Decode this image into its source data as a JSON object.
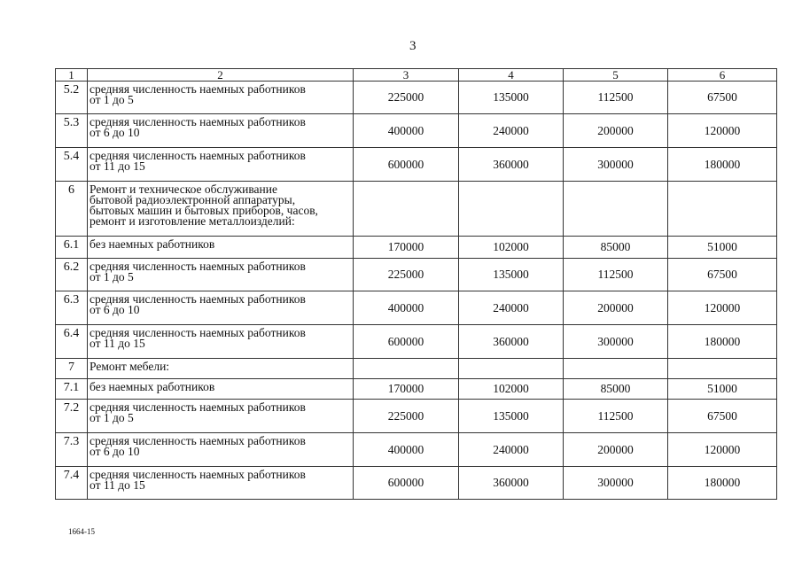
{
  "page_number": "3",
  "footer_code": "1664-15",
  "table": {
    "headers": [
      "1",
      "2",
      "3",
      "4",
      "5",
      "6"
    ],
    "rows": [
      {
        "code": "5.2",
        "text": [
          "средняя численность наемных работников",
          "от 1 до 5"
        ],
        "values": [
          "225000",
          "135000",
          "112500",
          "67500"
        ]
      },
      {
        "code": "5.3",
        "text": [
          "средняя численность наемных работников",
          "от 6 до 10"
        ],
        "values": [
          "400000",
          "240000",
          "200000",
          "120000"
        ]
      },
      {
        "code": "5.4",
        "text": [
          "средняя численность наемных работников",
          "от 11 до 15"
        ],
        "values": [
          "600000",
          "360000",
          "300000",
          "180000"
        ]
      },
      {
        "code": "6",
        "text": [
          "Ремонт и техническое обслуживание",
          "бытовой радиоэлектронной аппаратуры,",
          "бытовых машин и бытовых приборов, часов,",
          "ремонт и изготовление металлоизделий:"
        ],
        "values": [
          "",
          "",
          "",
          ""
        ]
      },
      {
        "code": "6.1",
        "text": [
          "без наемных работников"
        ],
        "values": [
          "170000",
          "102000",
          "85000",
          "51000"
        ]
      },
      {
        "code": "6.2",
        "text": [
          "средняя численность наемных работников",
          "от 1 до 5"
        ],
        "values": [
          "225000",
          "135000",
          "112500",
          "67500"
        ]
      },
      {
        "code": "6.3",
        "text": [
          "средняя численность наемных работников",
          "от 6 до 10"
        ],
        "values": [
          "400000",
          "240000",
          "200000",
          "120000"
        ]
      },
      {
        "code": "6.4",
        "text": [
          "средняя численность наемных работников",
          "от 11 до 15"
        ],
        "values": [
          "600000",
          "360000",
          "300000",
          "180000"
        ]
      },
      {
        "code": "7",
        "text": [
          "Ремонт мебели:"
        ],
        "values": [
          "",
          "",
          "",
          ""
        ]
      },
      {
        "code": "7.1",
        "text": [
          "без наемных работников"
        ],
        "values": [
          "170000",
          "102000",
          "85000",
          "51000"
        ]
      },
      {
        "code": "7.2",
        "text": [
          "средняя численность наемных работников",
          "от 1 до 5"
        ],
        "values": [
          "225000",
          "135000",
          "112500",
          "67500"
        ]
      },
      {
        "code": "7.3",
        "text": [
          "средняя численность наемных работников",
          "от 6 до 10"
        ],
        "values": [
          "400000",
          "240000",
          "200000",
          "120000"
        ]
      },
      {
        "code": "7.4",
        "text": [
          "средняя численность наемных работников",
          "от 11 до 15"
        ],
        "values": [
          "600000",
          "360000",
          "300000",
          "180000"
        ]
      }
    ]
  }
}
